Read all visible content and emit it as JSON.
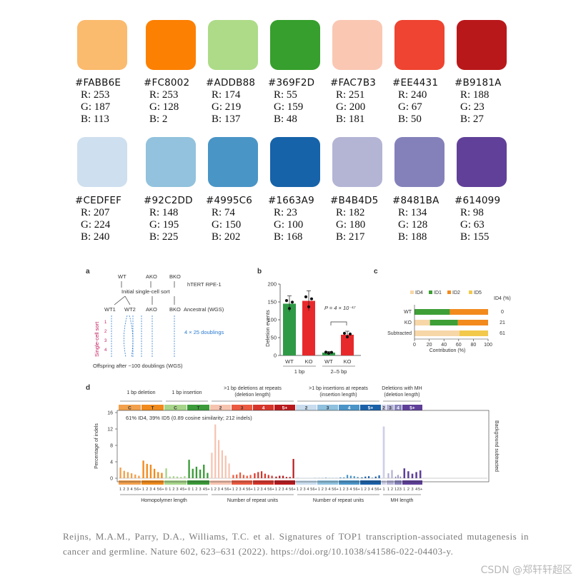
{
  "palette": [
    {
      "hex": "#FABB6E",
      "r": "R: 253",
      "g": "G: 187",
      "b": "B: 113",
      "color": "#FABB6E"
    },
    {
      "hex": "#FC8002",
      "r": "R: 253",
      "g": "G: 128",
      "b": "B: 2",
      "color": "#FC8002"
    },
    {
      "hex": "#ADDB88",
      "r": "R: 174",
      "g": "G: 219",
      "b": "B: 137",
      "color": "#ADDB88"
    },
    {
      "hex": "#369F2D",
      "r": "R: 55",
      "g": "G: 159",
      "b": "B: 48",
      "color": "#369F2D"
    },
    {
      "hex": "#FAC7B3",
      "r": "R: 251",
      "g": "G: 200",
      "b": "B: 181",
      "color": "#FAC7B3"
    },
    {
      "hex": "#EE4431",
      "r": "R: 240",
      "g": "G: 67",
      "b": "B: 50",
      "color": "#EE4431"
    },
    {
      "hex": "#B9181A",
      "r": "R: 188",
      "g": "G: 23",
      "b": "B: 27",
      "color": "#B9181A"
    },
    {
      "hex": "#CEDFEF",
      "r": "R: 207",
      "g": "G: 224",
      "b": "B: 240",
      "color": "#CEDFEF"
    },
    {
      "hex": "#92C2DD",
      "r": "R: 148",
      "g": "G: 195",
      "b": "B: 225",
      "color": "#92C2DD"
    },
    {
      "hex": "#4995C6",
      "r": "R: 74",
      "g": "G: 150",
      "b": "B: 202",
      "color": "#4995C6"
    },
    {
      "hex": "#1663A9",
      "r": "R: 23",
      "g": "G: 100",
      "b": "B: 168",
      "color": "#1663A9"
    },
    {
      "hex": "#B4B4D5",
      "r": "R: 182",
      "g": "G: 180",
      "b": "B: 217",
      "color": "#B4B4D5"
    },
    {
      "hex": "#8481BA",
      "r": "R: 134",
      "g": "G: 128",
      "b": "B: 188",
      "color": "#8481BA"
    },
    {
      "hex": "#614099",
      "r": "R: 98",
      "g": "G: 63",
      "b": "B: 155",
      "color": "#614099"
    }
  ],
  "panel_a": {
    "label": "a",
    "wt": "WT",
    "ako": "AKO",
    "bko": "BKO",
    "htert": "hTERT RPE-1",
    "sort": "Initial single-cell sort",
    "wt1": "WT1",
    "wt2": "WT2",
    "ako2": "AKO",
    "bko2": "BKO",
    "ancestral": "Ancestral (WGS)",
    "single_cell_sort": "Single-cell sort",
    "n1": "1",
    "n2": "2",
    "n3": "3",
    "n4": "4",
    "doublings": "4 × 25 doublings",
    "offspring": "Offspring after ~100 doublings (WGS)"
  },
  "panel_c": {
    "label": "c",
    "legend": [
      "ID4",
      "ID1",
      "ID2",
      "ID5"
    ],
    "legend_colors": [
      "#F7D7A8",
      "#3E9F36",
      "#F28A1E",
      "#F3C94C"
    ],
    "row_labels": [
      "WT",
      "KO",
      "Subtracted"
    ],
    "id4_header": "ID4 (%)",
    "id4_values": [
      "0",
      "21",
      "61"
    ],
    "x_ticks": [
      "0",
      "20",
      "40",
      "60",
      "80",
      "100"
    ],
    "xlabel": "Contribution (%)"
  },
  "panel_d": {
    "label": "d",
    "group_headers": [
      "1 bp deletion",
      "1 bp insertion",
      ">1 bp deletions at repeats\n(deletion length)",
      ">1 bp insertions at repeats\n(insertion length)",
      "Deletions with MH\n(deletion length)"
    ],
    "block_labels": [
      "C",
      "T",
      "C",
      "T",
      "2",
      "3",
      "4",
      "5+",
      "2",
      "3",
      "4",
      "5+",
      "2",
      "3",
      "4",
      "5+"
    ],
    "annotation": "61% ID4, 39% ID5 (0.89 cosine similarity; 212 indels)",
    "ylabel": "Percentage of indels",
    "right_label": "Background subtracted",
    "y_ticks": [
      "0",
      "4",
      "8",
      "12",
      "16"
    ],
    "bottom_groups": [
      "Homopolymer length",
      "Number of repeat units",
      "Number of repeat units",
      "MH length"
    ],
    "tick_hp": [
      "1",
      "2",
      "3",
      "4",
      "5",
      "6+"
    ],
    "tick_hp0": [
      "0",
      "1",
      "2",
      "3",
      "4",
      "5+"
    ],
    "tick_mh1": [
      "1"
    ],
    "tick_mh2": [
      "1",
      "2"
    ],
    "tick_mh3": [
      "1",
      "2",
      "3"
    ],
    "tick_mh4": [
      "1",
      "2",
      "3",
      "4",
      "5+"
    ]
  },
  "citation": "Reijns, M.A.M., Parry, D.A., Williams, T.C. et al. Signatures of TOP1 transcription-associated mutagenesis in cancer and germline. Nature 602, 623–631 (2022). https://doi.org/10.1038/s41586-022-04403-y.",
  "watermark": "CSDN @郑轩轩超区",
  "chart_data": [
    {
      "type": "bar",
      "panel": "b",
      "categories": [
        "WT",
        "KO",
        "WT",
        "KO"
      ],
      "groups": [
        "1 bp",
        "2–5 bp"
      ],
      "values": [
        145,
        153,
        8,
        58
      ],
      "errors": [
        22,
        28,
        3,
        10
      ],
      "colors": [
        "#2E9A46",
        "#E8292C",
        "#2E9A46",
        "#E8292C"
      ],
      "title": "",
      "xlabel": "",
      "ylabel": "Deletion events",
      "ylim": [
        0,
        200
      ],
      "yticks": [
        "0",
        "50",
        "100",
        "150",
        "200"
      ],
      "annotation": "P = 4 × 10⁻¹⁷"
    },
    {
      "type": "bar",
      "panel": "c",
      "orientation": "horizontal-stacked",
      "categories": [
        "WT",
        "KO",
        "Subtracted"
      ],
      "series": [
        {
          "name": "ID4",
          "values": [
            0,
            21,
            61
          ]
        },
        {
          "name": "ID1",
          "values": [
            48,
            38,
            0
          ]
        },
        {
          "name": "ID2",
          "values": [
            52,
            41,
            0
          ]
        },
        {
          "name": "ID5",
          "values": [
            0,
            0,
            39
          ]
        }
      ],
      "xlabel": "Contribution (%)",
      "xlim": [
        0,
        100
      ]
    },
    {
      "type": "bar",
      "panel": "d",
      "ylabel": "Percentage of indels",
      "ylim": [
        0,
        16
      ],
      "groups": [
        {
          "color": "#F2A04C",
          "values": [
            2.6,
            1.8,
            1.5,
            1.2,
            0.9,
            0.6
          ]
        },
        {
          "color": "#F08A1C",
          "values": [
            4.3,
            3.5,
            3.3,
            2.3,
            1.5,
            1.3
          ]
        },
        {
          "color": "#A7D48A",
          "values": [
            2.4,
            0.4,
            0.5,
            0.4,
            0.3,
            0.5
          ]
        },
        {
          "color": "#3A9B38",
          "values": [
            4.5,
            2.3,
            2.8,
            2.1,
            3.3,
            1.3
          ]
        },
        {
          "color": "#F6C3AF",
          "values": [
            6.2,
            13.1,
            9.3,
            6.8,
            5.5,
            3.6
          ]
        },
        {
          "color": "#EB5A40",
          "values": [
            0.8,
            0.9,
            1.4,
            0.8,
            0.6,
            0.8
          ]
        },
        {
          "color": "#D6342A",
          "values": [
            1.2,
            1.5,
            1.7,
            1.1,
            0.8,
            0.6
          ]
        },
        {
          "color": "#B8181C",
          "values": [
            0.4,
            0.6,
            0.6,
            0.3,
            0.3,
            4.7
          ]
        },
        {
          "color": "#C8DCEE",
          "values": [
            0.2,
            0.1,
            0.1,
            0.1,
            0.1,
            0.2
          ]
        },
        {
          "color": "#8FC0DE",
          "values": [
            0.1,
            0.1,
            0.2,
            0.1,
            0.1,
            0.1
          ]
        },
        {
          "color": "#4A94C8",
          "values": [
            0.2,
            0.2,
            0.8,
            0.6,
            0.5,
            0.3
          ]
        },
        {
          "color": "#1A60A8",
          "values": [
            0.2,
            0.4,
            0.5,
            0.1,
            0.4,
            0.7
          ]
        },
        {
          "color": "#CFCFE8",
          "values": [
            12.6
          ]
        },
        {
          "color": "#B3B2D6",
          "values": [
            1.2,
            2.0
          ]
        },
        {
          "color": "#8783BC",
          "values": [
            0.4,
            0.8,
            0.4
          ]
        },
        {
          "color": "#5E3E98",
          "values": [
            2.4,
            1.7,
            1.1,
            1.5,
            1.9
          ]
        }
      ]
    }
  ]
}
